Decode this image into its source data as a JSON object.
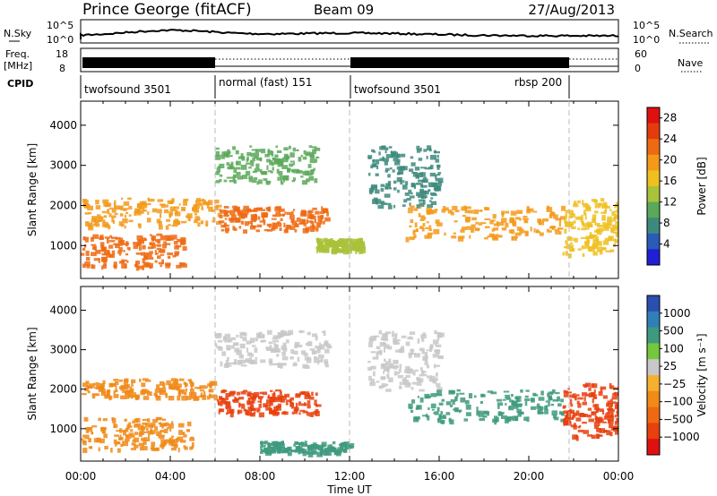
{
  "header": {
    "title": "Prince George (fitACF)",
    "beam": "Beam 09",
    "date": "27/Aug/2013"
  },
  "top_panels": {
    "nsky_label": "N.Sky",
    "nsky_ticks": [
      "10^5",
      "10^0"
    ],
    "nsearch_label": "N.Search",
    "nsearch_ticks": [
      "10^5",
      "10^0"
    ],
    "freq_label_1": "Freq.",
    "freq_label_2": "[MHz]",
    "freq_ticks": [
      "18",
      "8"
    ],
    "nave_label": "Nave",
    "nave_ticks": [
      "60",
      "0"
    ],
    "cpid_label": "CPID",
    "cpid_segments": [
      {
        "label": "twofsound 3501",
        "start": 0,
        "end": 6
      },
      {
        "label": "normal (fast) 151",
        "start": 6,
        "end": 12
      },
      {
        "label": "twofsound 3501",
        "start": 12,
        "end": 21.8
      },
      {
        "label": "rbsp 200",
        "start": 21.8,
        "end": 24
      }
    ]
  },
  "chart_data": [
    {
      "type": "heatmap",
      "title": "",
      "xlabel": "Time UT",
      "ylabel": "Slant Range [km]",
      "xlim": [
        0,
        24
      ],
      "ylim": [
        180,
        4600
      ],
      "x_ticks": [
        "00:00",
        "04:00",
        "08:00",
        "12:00",
        "16:00",
        "20:00",
        "00:00"
      ],
      "y_ticks": [
        "1000",
        "2000",
        "3000",
        "4000"
      ],
      "colorbar": {
        "label": "Power [dB]",
        "ticks": [
          "4",
          "8",
          "12",
          "16",
          "20",
          "24",
          "28"
        ],
        "range": [
          0,
          30
        ],
        "colors": [
          "#1f1fd6",
          "#2a5bb8",
          "#3d8a7c",
          "#5aa85a",
          "#a9c23a",
          "#f0c020",
          "#f39a1a",
          "#ee6a12",
          "#e43c0c",
          "#e01010"
        ]
      },
      "regions": [
        {
          "t0": 0.0,
          "t1": 6.2,
          "r_min": 1500,
          "r_max": 2200,
          "value": 18
        },
        {
          "t0": 0.0,
          "t1": 4.6,
          "r_min": 500,
          "r_max": 1300,
          "value": 22
        },
        {
          "t0": 6.0,
          "t1": 11.0,
          "r_min": 1400,
          "r_max": 2000,
          "value": 22
        },
        {
          "t0": 6.0,
          "t1": 10.5,
          "r_min": 2600,
          "r_max": 3500,
          "value": 10
        },
        {
          "t0": 10.5,
          "t1": 12.5,
          "r_min": 900,
          "r_max": 1200,
          "value": 14
        },
        {
          "t0": 12.8,
          "t1": 16.0,
          "r_min": 2000,
          "r_max": 3500,
          "value": 8
        },
        {
          "t0": 14.5,
          "t1": 21.5,
          "r_min": 1200,
          "r_max": 2000,
          "value": 20
        },
        {
          "t0": 21.5,
          "t1": 24.0,
          "r_min": 800,
          "r_max": 2200,
          "value": 16
        }
      ]
    },
    {
      "type": "heatmap",
      "title": "",
      "xlabel": "Time UT",
      "ylabel": "Slant Range [km]",
      "xlim": [
        0,
        24
      ],
      "ylim": [
        180,
        4600
      ],
      "x_ticks": [
        "00:00",
        "04:00",
        "08:00",
        "12:00",
        "16:00",
        "20:00",
        "00:00"
      ],
      "y_ticks": [
        "1000",
        "2000",
        "3000",
        "4000"
      ],
      "colorbar": {
        "label": "Velocity [m s⁻¹]",
        "ticks": [
          "1000",
          "500",
          "100",
          "25",
          "−25",
          "−100",
          "−500",
          "−1000"
        ],
        "colors": [
          "#2a4fb0",
          "#2f7fb8",
          "#3e9a7e",
          "#74c83c",
          "#c8c8c8",
          "#f5b030",
          "#f08a18",
          "#ee6a12",
          "#e8400e",
          "#e01010"
        ]
      },
      "regions": [
        {
          "t0": 0.0,
          "t1": 6.0,
          "r_min": 1800,
          "r_max": 2300,
          "value": -100
        },
        {
          "t0": 0.0,
          "t1": 5.0,
          "r_min": 500,
          "r_max": 1300,
          "value": -100
        },
        {
          "t0": 6.0,
          "t1": 10.5,
          "r_min": 1400,
          "r_max": 2000,
          "value": -500
        },
        {
          "t0": 6.0,
          "t1": 11.0,
          "r_min": 2600,
          "r_max": 3500,
          "value": 0
        },
        {
          "t0": 8.0,
          "t1": 12.0,
          "r_min": 400,
          "r_max": 700,
          "value": 100
        },
        {
          "t0": 12.8,
          "t1": 16.0,
          "r_min": 2000,
          "r_max": 3500,
          "value": 0
        },
        {
          "t0": 14.5,
          "t1": 21.5,
          "r_min": 1200,
          "r_max": 2000,
          "value": 100
        },
        {
          "t0": 21.5,
          "t1": 24.0,
          "r_min": 800,
          "r_max": 2200,
          "value": -500
        }
      ]
    }
  ]
}
